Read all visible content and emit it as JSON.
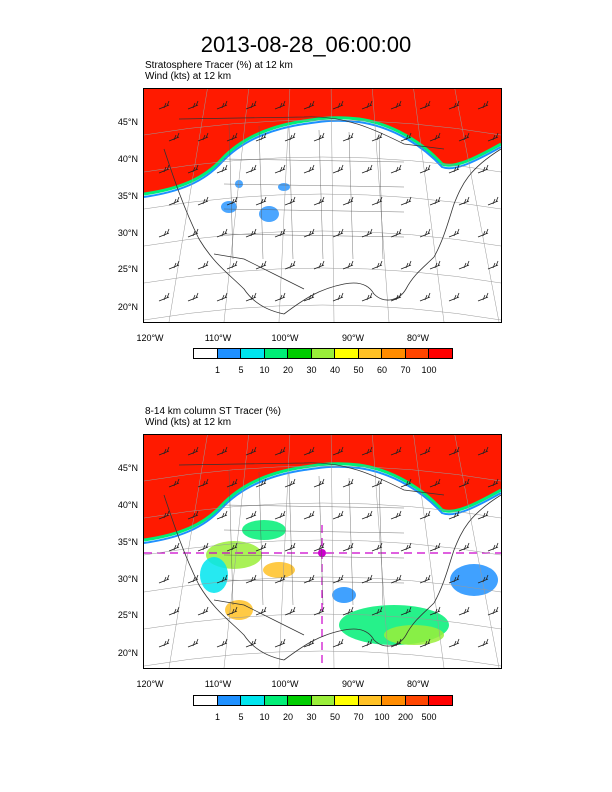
{
  "title": "2013-08-28_06:00:00",
  "panels": [
    {
      "subtitle_line1": "Stratosphere Tracer   (%)     at   12 km",
      "subtitle_line2": "Wind   (kts)     at   12 km",
      "lat_labels": [
        "45°N",
        "40°N",
        "35°N",
        "30°N",
        "25°N",
        "20°N"
      ],
      "lon_labels": [
        "120°W",
        "110°W",
        "100°W",
        "90°W",
        "80°W"
      ],
      "colorbar_labels": [
        "1",
        "5",
        "10",
        "20",
        "30",
        "40",
        "50",
        "60",
        "70",
        "100"
      ]
    },
    {
      "subtitle_line1": "8-14 km column ST Tracer   (%)",
      "subtitle_line2": "Wind   (kts)     at   12 km",
      "lat_labels": [
        "45°N",
        "40°N",
        "35°N",
        "30°N",
        "25°N",
        "20°N"
      ],
      "lon_labels": [
        "120°W",
        "110°W",
        "100°W",
        "90°W",
        "80°W"
      ],
      "colorbar_labels": [
        "1",
        "5",
        "10",
        "20",
        "30",
        "50",
        "70",
        "100",
        "200",
        "500"
      ]
    }
  ],
  "colorbar_colors": [
    "#ffffff",
    "#1e90ff",
    "#00e5ee",
    "#00ee76",
    "#00cd00",
    "#9aee3a",
    "#ffff00",
    "#ffc125",
    "#ff8c00",
    "#ff4500",
    "#ff0000"
  ]
}
